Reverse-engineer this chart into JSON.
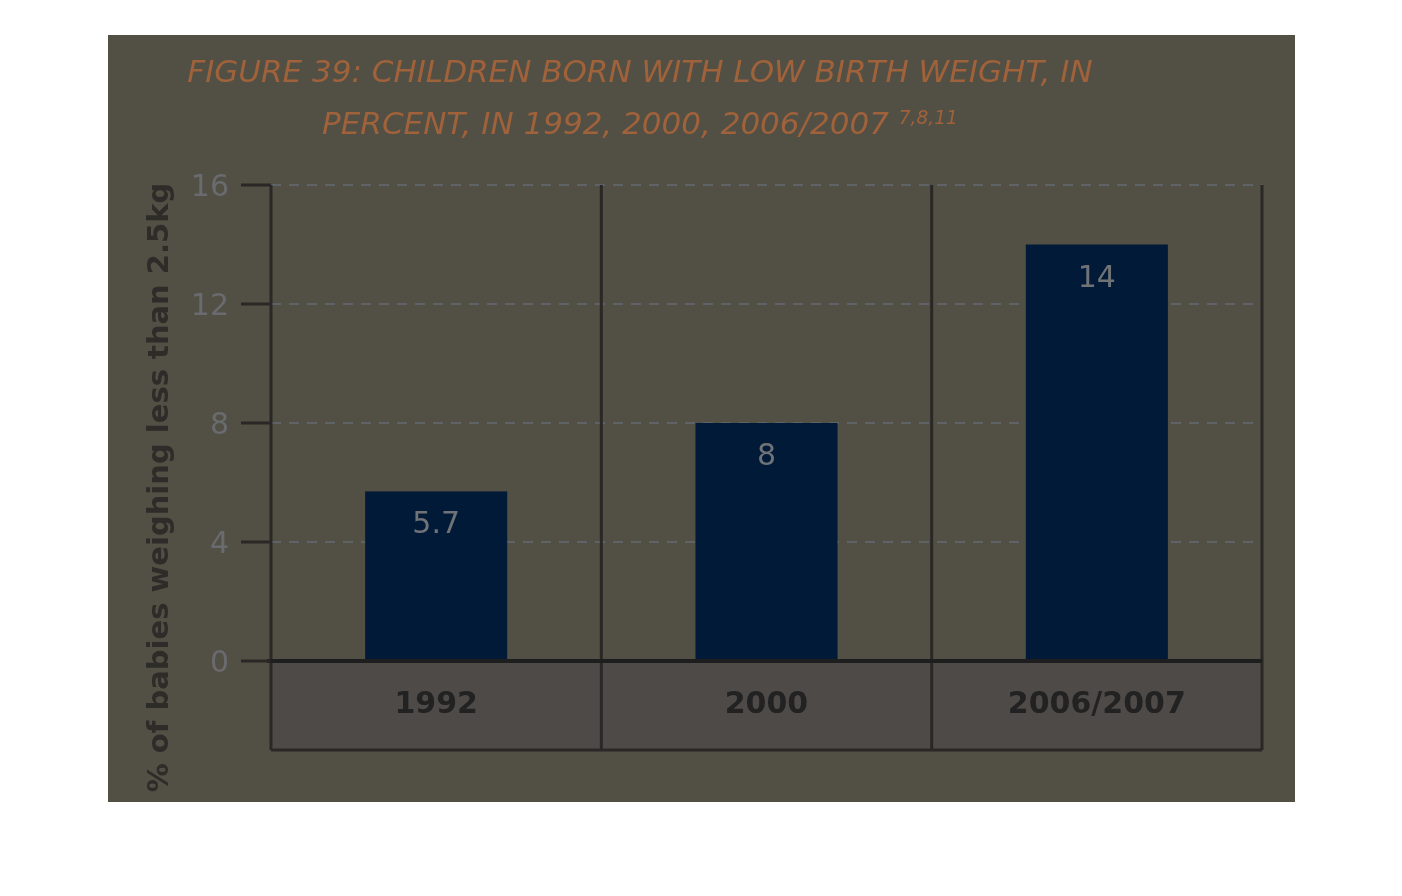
{
  "chart_data": {
    "type": "bar",
    "title": "FIGURE 39: CHILDREN BORN WITH LOW BIRTH WEIGHT, IN PERCENT, IN 1992, 2000, 2006/2007 $^{7,8,11}$",
    "ylabel": "% of babies weighing less than 2.5kg",
    "categories": [
      "1992",
      "2000",
      "2006/2007"
    ],
    "values": [
      5.7,
      8,
      14
    ],
    "color": "#001a38",
    "ylim": [
      0,
      16
    ],
    "yticks": [
      0,
      4,
      8,
      12,
      16
    ],
    "grid": "y",
    "data_labels": true
  }
}
